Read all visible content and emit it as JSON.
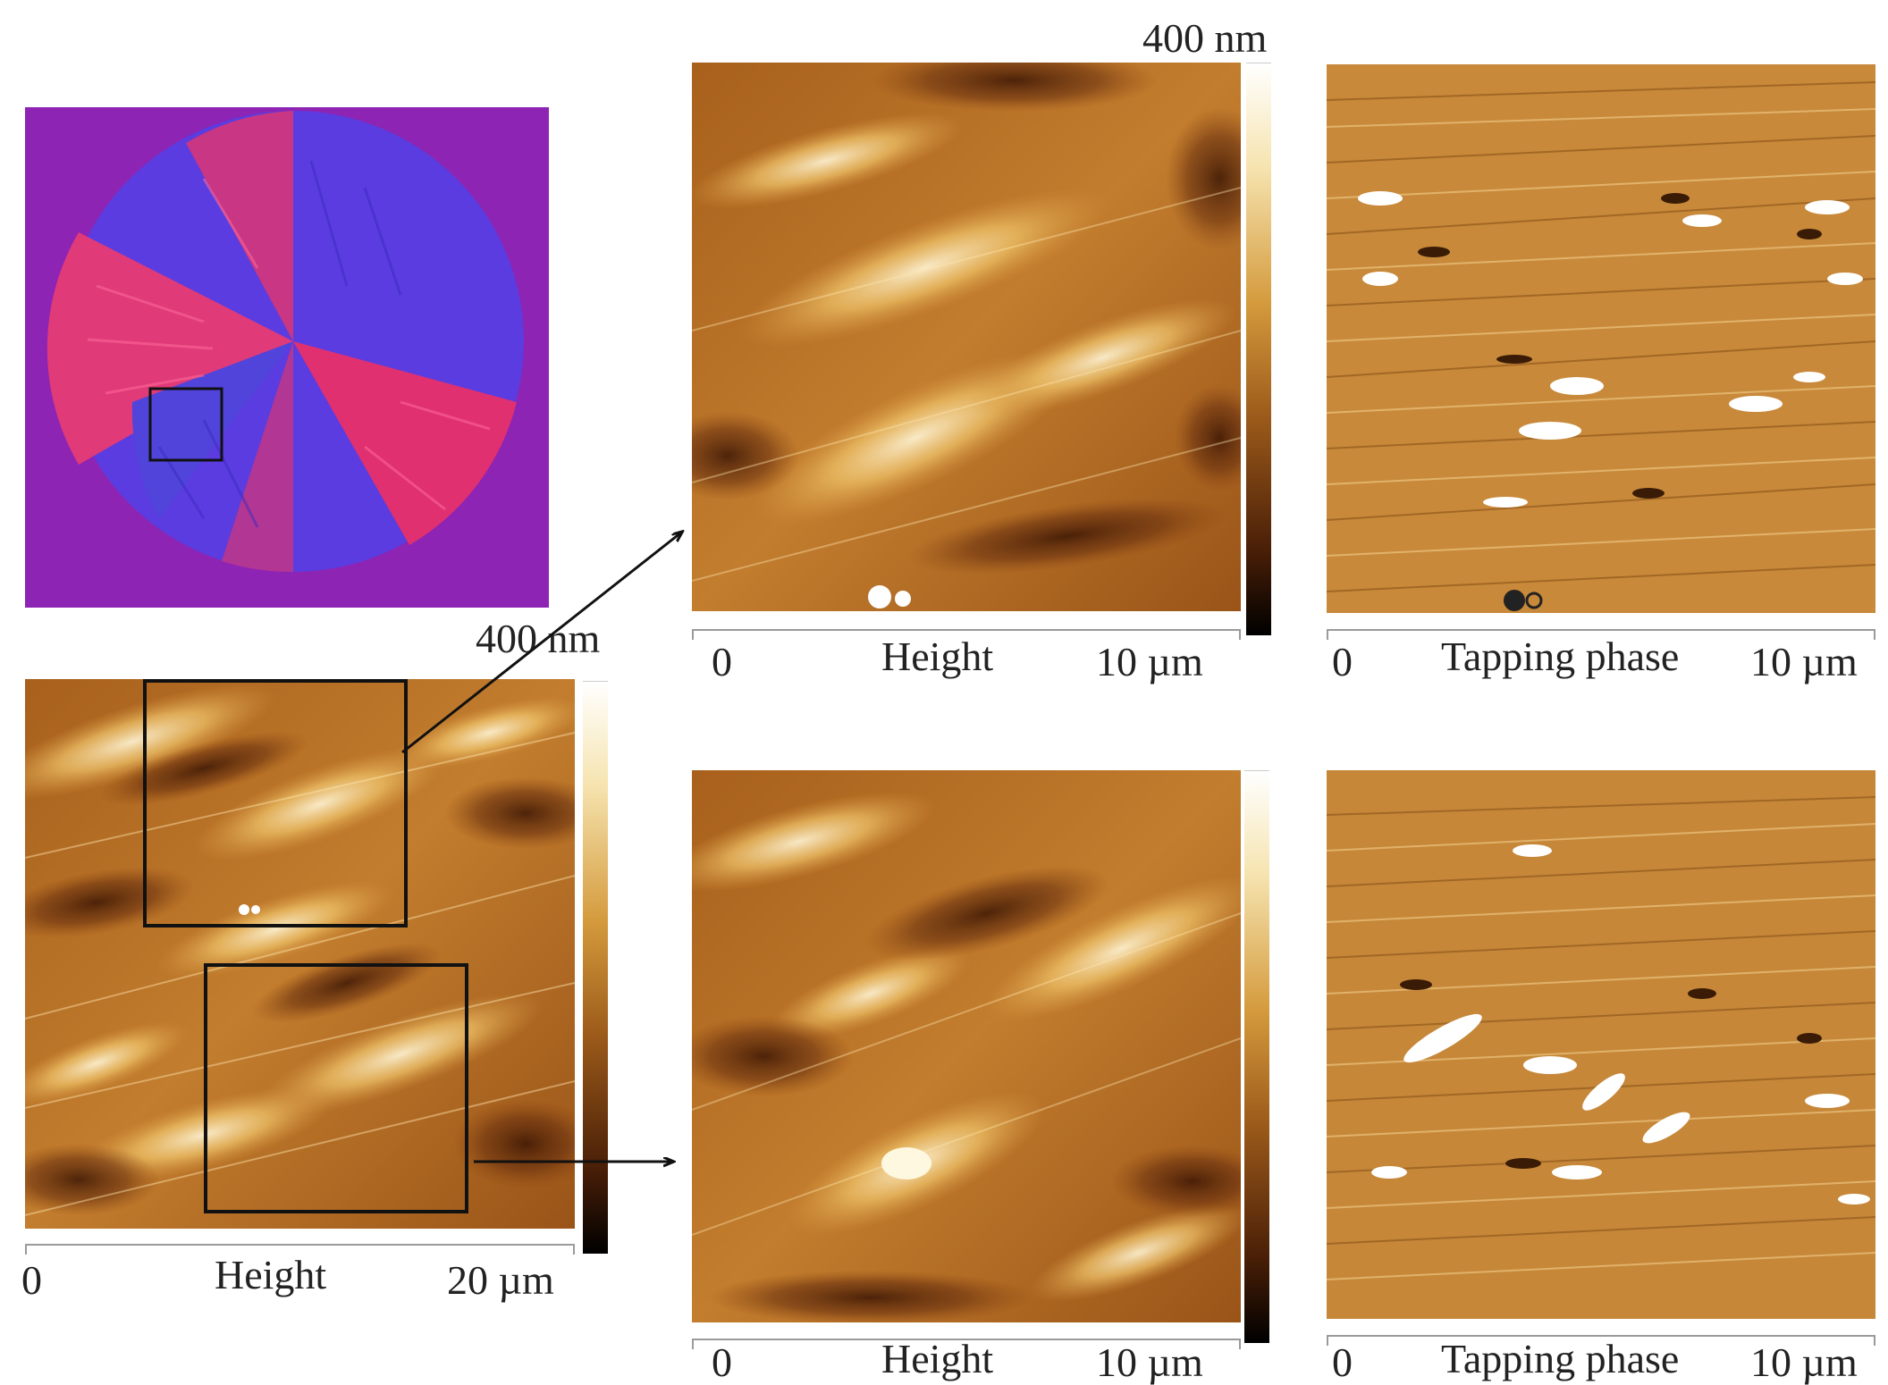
{
  "panels": {
    "optical": {
      "icon": "polarized-optical-micrograph"
    },
    "height_large": {
      "colorbar_max": "400 nm",
      "scale_start": "0",
      "caption": "Height",
      "scale_end": "20 µm"
    },
    "height_top": {
      "colorbar_max": "400 nm",
      "scale_start": "0",
      "caption": "Height",
      "scale_end": "10 µm"
    },
    "phase_top": {
      "scale_start": "0",
      "caption": "Tapping phase",
      "scale_end": "10 µm"
    },
    "height_bottom": {
      "scale_start": "0",
      "caption": "Height",
      "scale_end": "10 µm"
    },
    "phase_bottom": {
      "scale_start": "0",
      "caption": "Tapping phase",
      "scale_end": "10 µm"
    }
  },
  "colors": {
    "afm_dark": "#5a2a08",
    "afm_mid": "#c07a2a",
    "afm_light": "#ffe9b8",
    "optical_bg": "#8a22b0",
    "optical_red": "#e8346a",
    "optical_blue": "#4a3be0"
  }
}
